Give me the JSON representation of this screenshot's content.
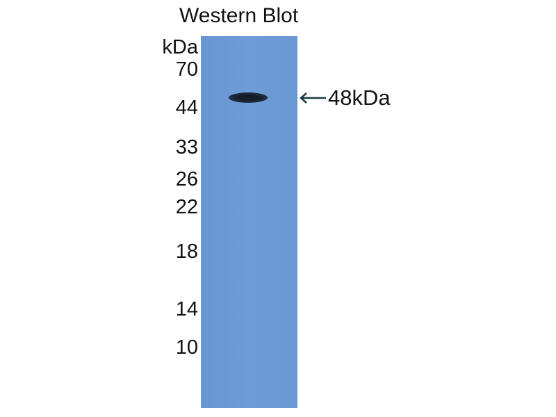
{
  "title": "Western Blot",
  "unit_label": "kDa",
  "markers": [
    "70",
    "44",
    "33",
    "26",
    "22",
    "18",
    "14",
    "10"
  ],
  "band_label": "48kDa",
  "colors": {
    "membrane": "#6a98d3",
    "band": "#1a2433",
    "arrow": "#1e3a44"
  }
}
